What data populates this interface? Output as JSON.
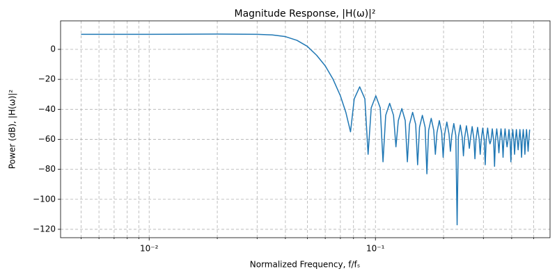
{
  "chart_data": {
    "type": "line",
    "title": "Magnitude Response, |H(ω)|²",
    "xlabel": "Normalized Frequency, f/fₛ",
    "ylabel": "Power (dB), |H(ω)|²",
    "xscale": "log",
    "grid": true,
    "color": "#1f77b4",
    "xlim": [
      0.00406,
      0.591
    ],
    "ylim": [
      -125.6,
      19
    ],
    "xticks": [
      {
        "value": 0.01,
        "label": "10⁻²"
      },
      {
        "value": 0.1,
        "label": "10⁻¹"
      }
    ],
    "xminorticks": [
      0.005,
      0.006,
      0.007,
      0.008,
      0.009,
      0.02,
      0.03,
      0.04,
      0.05,
      0.06,
      0.07,
      0.08,
      0.09,
      0.2,
      0.3,
      0.4,
      0.5
    ],
    "yticks": [
      {
        "value": -120,
        "label": "−120"
      },
      {
        "value": -100,
        "label": "−100"
      },
      {
        "value": -80,
        "label": "−80"
      },
      {
        "value": -60,
        "label": "−60"
      },
      {
        "value": -40,
        "label": "−40"
      },
      {
        "value": -20,
        "label": "−20"
      },
      0
    ],
    "x": [
      0.005,
      0.01,
      0.02,
      0.03,
      0.035,
      0.04,
      0.045,
      0.05,
      0.055,
      0.06,
      0.065,
      0.07,
      0.074,
      0.0776,
      0.0806,
      0.0852,
      0.0898,
      0.0928,
      0.0958,
      0.1004,
      0.105,
      0.108,
      0.111,
      0.1156,
      0.1202,
      0.1232,
      0.1262,
      0.1308,
      0.1354,
      0.1384,
      0.1414,
      0.146,
      0.1506,
      0.1536,
      0.1566,
      0.1612,
      0.1658,
      0.1688,
      0.1718,
      0.1764,
      0.181,
      0.184,
      0.187,
      0.1916,
      0.1962,
      0.1992,
      0.2022,
      0.2068,
      0.2114,
      0.2144,
      0.2174,
      0.222,
      0.2266,
      0.2296,
      0.2326,
      0.2372,
      0.2418,
      0.2448,
      0.2478,
      0.2524,
      0.257,
      0.26,
      0.263,
      0.2676,
      0.2722,
      0.2752,
      0.2782,
      0.2828,
      0.2874,
      0.2904,
      0.2934,
      0.298,
      0.3026,
      0.3056,
      0.3086,
      0.3132,
      0.3178,
      0.3208,
      0.3238,
      0.3284,
      0.333,
      0.336,
      0.339,
      0.3436,
      0.3482,
      0.3512,
      0.3542,
      0.3588,
      0.3634,
      0.3664,
      0.3694,
      0.374,
      0.3786,
      0.3816,
      0.3846,
      0.3892,
      0.3938,
      0.3968,
      0.3998,
      0.4044,
      0.409,
      0.412,
      0.415,
      0.4196,
      0.4242,
      0.4272,
      0.4302,
      0.4348,
      0.4394,
      0.4424,
      0.4454,
      0.45,
      0.4546,
      0.4576,
      0.4606,
      0.4652,
      0.4698,
      0.4728,
      0.4758,
      0.4804
    ],
    "values": [
      10,
      10,
      10.2,
      10,
      9.6,
      8.5,
      6,
      2,
      -4,
      -11,
      -20,
      -31,
      -42,
      -55,
      -33,
      -25,
      -33,
      -70,
      -39,
      -31,
      -39,
      -75,
      -44,
      -36,
      -44,
      -65,
      -47.5,
      -39.5,
      -47.5,
      -75,
      -50,
      -42,
      -50,
      -77,
      -52,
      -44,
      -52,
      -83,
      -54,
      -46,
      -54,
      -70,
      -55.5,
      -47.5,
      -55.5,
      -72,
      -56.5,
      -48.5,
      -56.5,
      -68,
      -57.5,
      -49.5,
      -57.5,
      -117,
      -58.5,
      -50.5,
      -58.5,
      -71,
      -59,
      -51,
      -59,
      -66,
      -59.5,
      -51.5,
      -59.5,
      -73,
      -60,
      -52,
      -60,
      -70,
      -60.5,
      -52.5,
      -60.5,
      -77,
      -60.5,
      -52.5,
      -60.5,
      -63,
      -61,
      -53,
      -61,
      -78,
      -61,
      -53,
      -61,
      -69,
      -61,
      -53,
      -61,
      -72,
      -61,
      -53,
      -61,
      -65,
      -61.5,
      -53.5,
      -61.5,
      -75,
      -61.5,
      -53.5,
      -61.5,
      -70,
      -61.5,
      -53.5,
      -61.5,
      -67,
      -61.5,
      -53.5,
      -61.5,
      -72,
      -61.5,
      -53.5,
      -61.5,
      -70,
      -61.5,
      -53.5,
      -61.5,
      -68,
      -61.5,
      -53.5
    ]
  }
}
